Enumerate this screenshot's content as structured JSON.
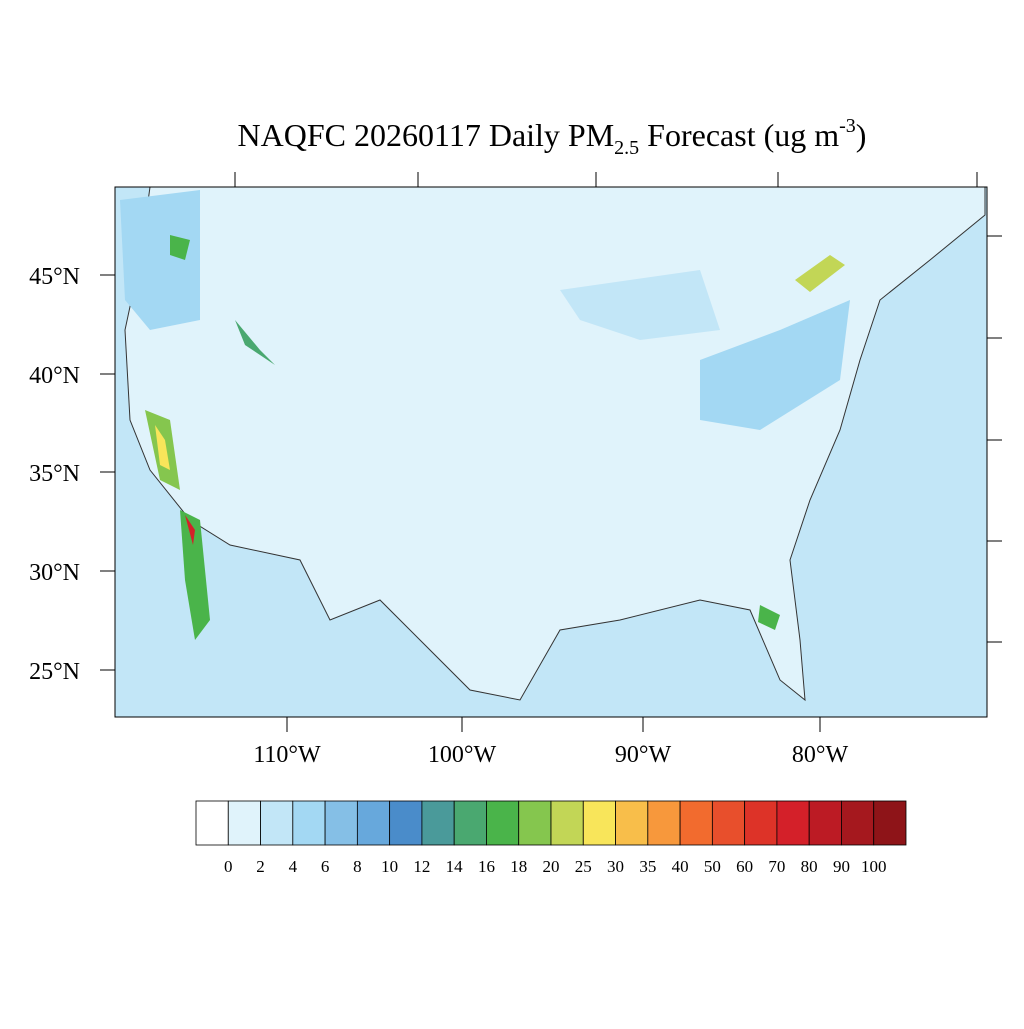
{
  "title": {
    "main": "NAQFC 20260117 Daily PM",
    "sub": "2.5",
    "rest": " Forecast (ug m",
    "sup": "-3",
    "end": ")"
  },
  "map": {
    "lat_labels": [
      "45°N",
      "40°N",
      "35°N",
      "30°N",
      "25°N"
    ],
    "lon_labels": [
      "110°W",
      "100°W",
      "90°W",
      "80°W"
    ]
  },
  "colorbar": {
    "levels": [
      0,
      2,
      4,
      6,
      8,
      10,
      12,
      14,
      16,
      18,
      20,
      25,
      30,
      35,
      40,
      50,
      60,
      70,
      80,
      90,
      100
    ],
    "colors": [
      "#ffffff",
      "#e0f3fb",
      "#c2e6f7",
      "#a3d8f3",
      "#85bfe6",
      "#67a8dc",
      "#4a8cca",
      "#4a9a9a",
      "#4aa870",
      "#4ab44a",
      "#85c64e",
      "#c2d656",
      "#f8e55a",
      "#f8be4a",
      "#f7983c",
      "#f26b2e",
      "#e84f2c",
      "#dd3328",
      "#d42029",
      "#bc1b24",
      "#a5181e",
      "#8e1418"
    ]
  }
}
